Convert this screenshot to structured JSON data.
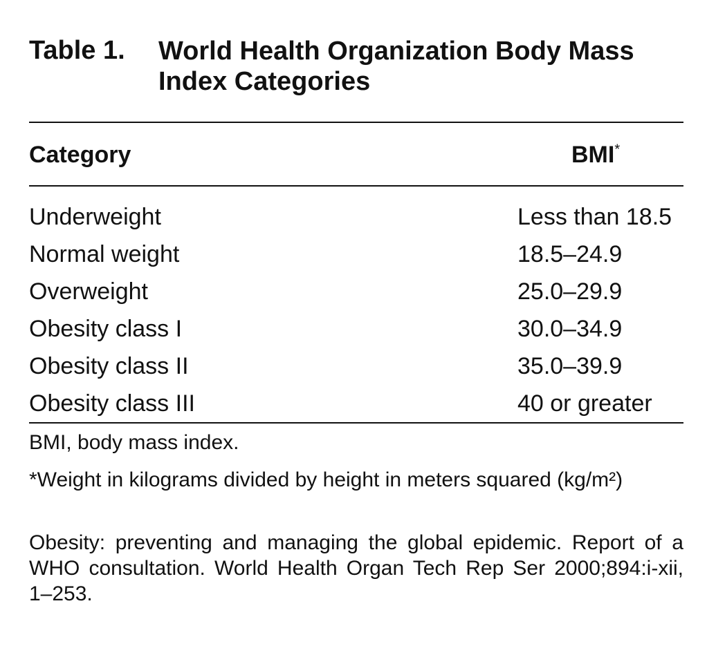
{
  "header": {
    "label": "Table 1.",
    "title": "World Health Organization Body Mass Index Categories"
  },
  "table": {
    "columns": [
      "Category",
      "BMI"
    ],
    "column_marker": "*",
    "rows": [
      [
        "Underweight",
        "Less than 18.5"
      ],
      [
        "Normal weight",
        "18.5–24.9"
      ],
      [
        "Overweight",
        "25.0–29.9"
      ],
      [
        "Obesity class I",
        "30.0–34.9"
      ],
      [
        "Obesity class II",
        "35.0–39.9"
      ],
      [
        "Obesity class III",
        "40 or greater"
      ]
    ]
  },
  "footnotes": [
    "BMI, body mass index.",
    "*Weight in kilograms divided by height in meters squared (kg/m²)",
    "Obesity: preventing and managing the global epidemic. Report of a WHO consultation. World Health Organ Tech Rep Ser 2000;894:i-xii, 1–253."
  ]
}
